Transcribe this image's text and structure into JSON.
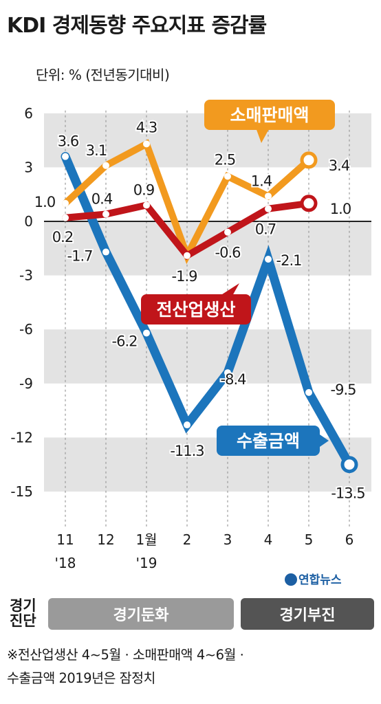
{
  "title": "KDI 경제동향 주요지표 증감률",
  "unit": "단위: % (전년동기대비)",
  "source": "연합뉴스",
  "diagnosis": {
    "label": "경기 진단",
    "phases": [
      "경기둔화",
      "경기부진"
    ]
  },
  "footnote": "※전산업생산 4~5월 · 소매판매액 4~6월 ·\n수출금액 2019년은 잠정치",
  "colors": {
    "retail": "#f29a1f",
    "industry": "#c0151a",
    "exports": "#1c75bc",
    "band": "#e3e3e3"
  },
  "chart_data": {
    "type": "line",
    "categories": [
      "11",
      "12",
      "1월",
      "2",
      "3",
      "4",
      "5",
      "6"
    ],
    "year_labels": [
      {
        "index": 0,
        "text": "'18"
      },
      {
        "index": 2,
        "text": "'19"
      }
    ],
    "yticks": [
      "6",
      "3",
      "0",
      "-3",
      "-6",
      "-9",
      "-12",
      "-15"
    ],
    "ylim": [
      -15,
      6
    ],
    "series": [
      {
        "name": "소매판매액",
        "key": "retail",
        "values": [
          1.0,
          3.1,
          4.3,
          -1.9,
          2.5,
          1.4,
          3.4,
          null
        ],
        "labels": [
          "1.0",
          "3.1",
          "4.3",
          "",
          "2.5",
          "1.4",
          "3.4",
          ""
        ]
      },
      {
        "name": "전산업생산",
        "key": "industry",
        "values": [
          0.2,
          0.4,
          0.9,
          -1.9,
          -0.6,
          0.7,
          1.0,
          null
        ],
        "labels": [
          "0.2",
          "0.4",
          "0.9",
          "-1.9",
          "-0.6",
          "0.7",
          "1.0",
          ""
        ]
      },
      {
        "name": "수출금액",
        "key": "exports",
        "values": [
          3.6,
          -1.7,
          -6.2,
          -11.3,
          -8.4,
          -2.1,
          -9.5,
          -13.5
        ],
        "labels": [
          "3.6",
          "-1.7",
          "-6.2",
          "-11.3",
          "-8.4",
          "-2.1",
          "-9.5",
          "-13.5"
        ]
      }
    ]
  }
}
